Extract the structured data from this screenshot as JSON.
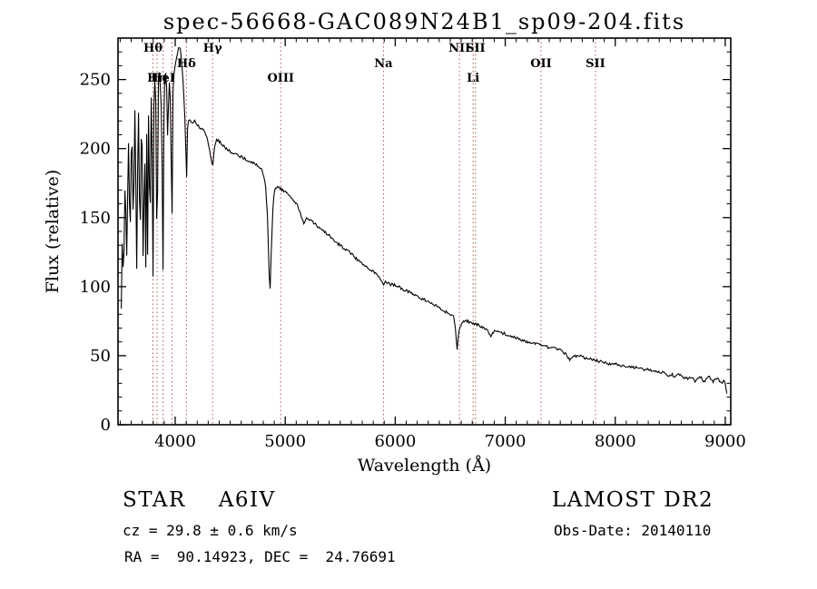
{
  "title": "spec-56668-GAC089N24B1_sp09-204.fits",
  "footer": {
    "class_name": "STAR",
    "subclass": "A6IV",
    "survey": "LAMOST DR2",
    "cz_line": "cz = 29.8 ± 0.6 km/s",
    "obs_date_line": "Obs-Date: 20140110",
    "ra_dec_line": "RA =  90.14923, DEC =  24.76691"
  },
  "chart_data": {
    "type": "line",
    "title": "spec-56668-GAC089N24B1_sp09-204.fits",
    "xlabel": "Wavelength (Å)",
    "ylabel": "Flux (relative)",
    "xlim": [
      3480,
      9050
    ],
    "ylim": [
      0,
      280
    ],
    "xticks": [
      4000,
      5000,
      6000,
      7000,
      8000,
      9000
    ],
    "yticks": [
      0,
      50,
      100,
      150,
      200,
      250
    ],
    "x_minor_step": 100,
    "y_minor_step": 10,
    "line_color": "#000000",
    "marker_color": "#a85c50",
    "marker_label_color": "#000000",
    "noise_amplitude": 1.0,
    "line_markers": [
      {
        "label": "Hθ",
        "wavelength": 3798,
        "row": 1
      },
      {
        "label": "Hη",
        "wavelength": 3835,
        "row": 3
      },
      {
        "label": "HeI",
        "wavelength": 3889,
        "row": 3
      },
      {
        "label": "",
        "wavelength": 3970,
        "row": 1
      },
      {
        "label": "Hδ",
        "wavelength": 4102,
        "row": 2
      },
      {
        "label": "Hγ",
        "wavelength": 4340,
        "row": 1
      },
      {
        "label": "OIII",
        "wavelength": 4959,
        "row": 3
      },
      {
        "label": "Na",
        "wavelength": 5893,
        "row": 2
      },
      {
        "label": "NII",
        "wavelength": 6584,
        "row": 1
      },
      {
        "label": "SII",
        "wavelength": 6730,
        "row": 1
      },
      {
        "label": "Li",
        "wavelength": 6708,
        "row": 3
      },
      {
        "label": "OII",
        "wavelength": 7325,
        "row": 2
      },
      {
        "label": "SII",
        "wavelength": 7820,
        "row": 2
      }
    ],
    "points": [
      [
        3510,
        85
      ],
      [
        3520,
        140
      ],
      [
        3530,
        100
      ],
      [
        3545,
        180
      ],
      [
        3560,
        120
      ],
      [
        3575,
        210
      ],
      [
        3590,
        130
      ],
      [
        3605,
        225
      ],
      [
        3620,
        140
      ],
      [
        3635,
        235
      ],
      [
        3650,
        110
      ],
      [
        3665,
        240
      ],
      [
        3680,
        125
      ],
      [
        3697,
        245
      ],
      [
        3703,
        150
      ],
      [
        3712,
        100
      ],
      [
        3721,
        230
      ],
      [
        3727,
        160
      ],
      [
        3734,
        105
      ],
      [
        3743,
        240
      ],
      [
        3750,
        110
      ],
      [
        3759,
        245
      ],
      [
        3766,
        170
      ],
      [
        3771,
        115
      ],
      [
        3780,
        248
      ],
      [
        3790,
        200
      ],
      [
        3798,
        95
      ],
      [
        3808,
        245
      ],
      [
        3820,
        252
      ],
      [
        3828,
        210
      ],
      [
        3835,
        100
      ],
      [
        3846,
        250
      ],
      [
        3856,
        255
      ],
      [
        3868,
        240
      ],
      [
        3878,
        220
      ],
      [
        3889,
        105
      ],
      [
        3900,
        250
      ],
      [
        3910,
        256
      ],
      [
        3921,
        250
      ],
      [
        3933,
        200
      ],
      [
        3944,
        254
      ],
      [
        3956,
        235
      ],
      [
        3964,
        190
      ],
      [
        3970,
        130
      ],
      [
        3980,
        240
      ],
      [
        3990,
        255
      ],
      [
        4000,
        260
      ],
      [
        4010,
        265
      ],
      [
        4030,
        272
      ],
      [
        4045,
        274
      ],
      [
        4060,
        262
      ],
      [
        4070,
        250
      ],
      [
        4085,
        230
      ],
      [
        4095,
        205
      ],
      [
        4102,
        170
      ],
      [
        4112,
        215
      ],
      [
        4125,
        222
      ],
      [
        4140,
        220
      ],
      [
        4160,
        218
      ],
      [
        4180,
        220
      ],
      [
        4200,
        217
      ],
      [
        4230,
        215
      ],
      [
        4260,
        213
      ],
      [
        4290,
        208
      ],
      [
        4310,
        200
      ],
      [
        4330,
        192
      ],
      [
        4340,
        186
      ],
      [
        4355,
        200
      ],
      [
        4375,
        207
      ],
      [
        4400,
        205
      ],
      [
        4430,
        203
      ],
      [
        4460,
        200
      ],
      [
        4500,
        198
      ],
      [
        4550,
        196
      ],
      [
        4600,
        194
      ],
      [
        4650,
        192
      ],
      [
        4700,
        190
      ],
      [
        4750,
        188
      ],
      [
        4790,
        184
      ],
      [
        4820,
        175
      ],
      [
        4840,
        150
      ],
      [
        4852,
        115
      ],
      [
        4861,
        92
      ],
      [
        4875,
        130
      ],
      [
        4890,
        160
      ],
      [
        4905,
        170
      ],
      [
        4920,
        172
      ],
      [
        4950,
        171
      ],
      [
        4980,
        170
      ],
      [
        5010,
        168
      ],
      [
        5060,
        164
      ],
      [
        5110,
        159
      ],
      [
        5170,
        146
      ],
      [
        5200,
        150
      ],
      [
        5250,
        147
      ],
      [
        5300,
        143
      ],
      [
        5350,
        140
      ],
      [
        5400,
        137
      ],
      [
        5450,
        133
      ],
      [
        5500,
        130
      ],
      [
        5550,
        127
      ],
      [
        5600,
        124
      ],
      [
        5650,
        120
      ],
      [
        5700,
        117
      ],
      [
        5750,
        114
      ],
      [
        5800,
        111
      ],
      [
        5850,
        108
      ],
      [
        5875,
        105
      ],
      [
        5893,
        100
      ],
      [
        5910,
        104
      ],
      [
        5950,
        102
      ],
      [
        6000,
        101
      ],
      [
        6050,
        99
      ],
      [
        6100,
        97
      ],
      [
        6150,
        95
      ],
      [
        6200,
        93
      ],
      [
        6250,
        91
      ],
      [
        6300,
        89
      ],
      [
        6350,
        87
      ],
      [
        6400,
        85
      ],
      [
        6450,
        82
      ],
      [
        6500,
        80
      ],
      [
        6530,
        78
      ],
      [
        6548,
        70
      ],
      [
        6556,
        60
      ],
      [
        6563,
        54
      ],
      [
        6572,
        63
      ],
      [
        6585,
        70
      ],
      [
        6605,
        74
      ],
      [
        6640,
        76
      ],
      [
        6680,
        74
      ],
      [
        6720,
        73
      ],
      [
        6760,
        72
      ],
      [
        6800,
        70
      ],
      [
        6840,
        68
      ],
      [
        6865,
        64
      ],
      [
        6880,
        66
      ],
      [
        6910,
        68
      ],
      [
        6950,
        67
      ],
      [
        7000,
        66
      ],
      [
        7050,
        64
      ],
      [
        7100,
        63
      ],
      [
        7150,
        61
      ],
      [
        7200,
        60
      ],
      [
        7250,
        59
      ],
      [
        7300,
        58
      ],
      [
        7350,
        57
      ],
      [
        7400,
        56
      ],
      [
        7450,
        55
      ],
      [
        7500,
        54
      ],
      [
        7550,
        51
      ],
      [
        7590,
        47
      ],
      [
        7620,
        49
      ],
      [
        7660,
        50
      ],
      [
        7700,
        49
      ],
      [
        7750,
        48
      ],
      [
        7800,
        47
      ],
      [
        7850,
        46
      ],
      [
        7900,
        45
      ],
      [
        7950,
        44
      ],
      [
        8000,
        44
      ],
      [
        8050,
        43
      ],
      [
        8100,
        42
      ],
      [
        8150,
        42
      ],
      [
        8200,
        41
      ],
      [
        8250,
        40
      ],
      [
        8300,
        40
      ],
      [
        8350,
        39
      ],
      [
        8400,
        38
      ],
      [
        8450,
        38
      ],
      [
        8498,
        35
      ],
      [
        8515,
        37
      ],
      [
        8542,
        34
      ],
      [
        8560,
        36
      ],
      [
        8600,
        36
      ],
      [
        8630,
        34
      ],
      [
        8662,
        33
      ],
      [
        8690,
        35
      ],
      [
        8730,
        31
      ],
      [
        8770,
        35
      ],
      [
        8810,
        31
      ],
      [
        8850,
        35
      ],
      [
        8890,
        31
      ],
      [
        8930,
        34
      ],
      [
        8965,
        30
      ],
      [
        8990,
        33
      ],
      [
        9005,
        28
      ],
      [
        9020,
        18
      ]
    ]
  }
}
